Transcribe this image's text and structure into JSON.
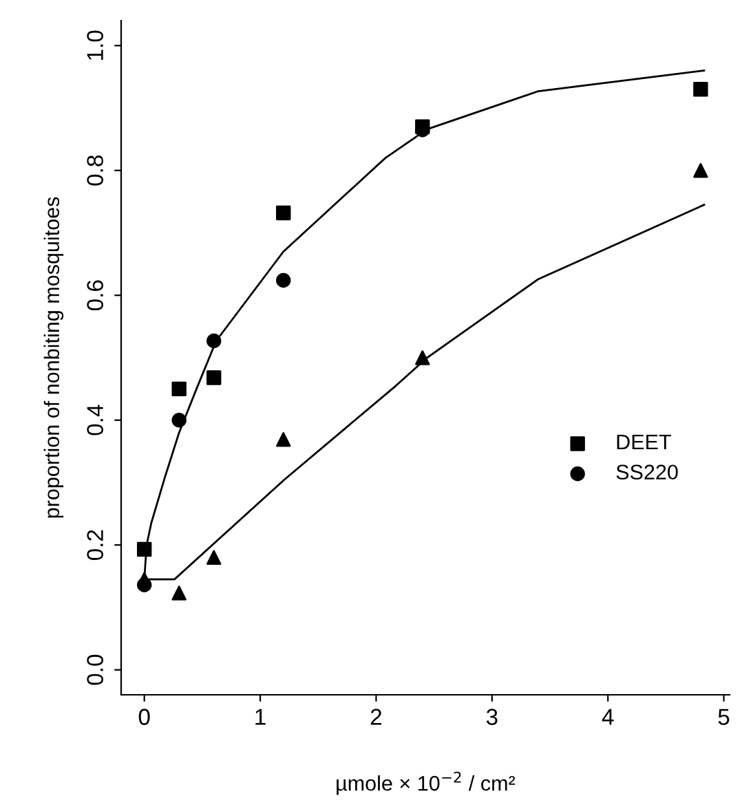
{
  "chart_data": {
    "type": "scatter",
    "xlabel": "µmole × 10$^{−2}$ / cm²",
    "ylabel": "proportion of nonbiting mosquitoes",
    "xlim": [
      -0.2,
      5.05
    ],
    "ylim": [
      -0.04,
      1.04
    ],
    "xticks": [
      0,
      1,
      2,
      3,
      4,
      5
    ],
    "yticks": [
      {
        "value": 0,
        "label": "0.0"
      },
      {
        "value": 0.2,
        "label": "0.2"
      },
      {
        "value": 0.4,
        "label": "0.4"
      },
      {
        "value": 0.6,
        "label": "0.6"
      },
      {
        "value": 0.8,
        "label": "0.8"
      },
      {
        "value": 1,
        "label": "1.0"
      }
    ],
    "grid": false,
    "legend": "center right",
    "series": [
      {
        "name": "DEET",
        "marker": "square",
        "color": "#000000",
        "x": [
          0,
          0.3,
          0.6,
          1.2,
          2.4,
          4.8
        ],
        "values": [
          0.193,
          0.45,
          0.468,
          0.732,
          0.87,
          0.93
        ]
      },
      {
        "name": "SS220",
        "marker": "circle",
        "color": "#000000",
        "x": [
          0,
          0.3,
          0.6,
          1.2,
          2.4
        ],
        "values": [
          0.136,
          0.4,
          0.527,
          0.624,
          0.865
        ]
      },
      {
        "marker": "triangle",
        "color": "#000000",
        "x": [
          0,
          0.3,
          0.6,
          1.2,
          2.4,
          4.8
        ],
        "values": [
          0.145,
          0.123,
          0.18,
          0.369,
          0.5,
          0.8
        ]
      },
      {
        "type": "line",
        "marker": "none",
        "line_style": "solid",
        "color": "#000000",
        "x": [
          0,
          0.02,
          0.06,
          0.18,
          0.3,
          0.45,
          0.62,
          1.2,
          2.08,
          2.44,
          3.4,
          4.83
        ],
        "values": [
          0.145,
          0.2,
          0.235,
          0.31,
          0.38,
          0.45,
          0.527,
          0.67,
          0.82,
          0.866,
          0.927,
          0.96
        ]
      },
      {
        "type": "line",
        "marker": "none",
        "line_style": "solid",
        "color": "#000000",
        "x": [
          0,
          0.26,
          1.21,
          2.17,
          2.44,
          3.4,
          4.83
        ],
        "values": [
          0.145,
          0.145,
          0.305,
          0.455,
          0.5,
          0.626,
          0.745
        ]
      }
    ]
  }
}
